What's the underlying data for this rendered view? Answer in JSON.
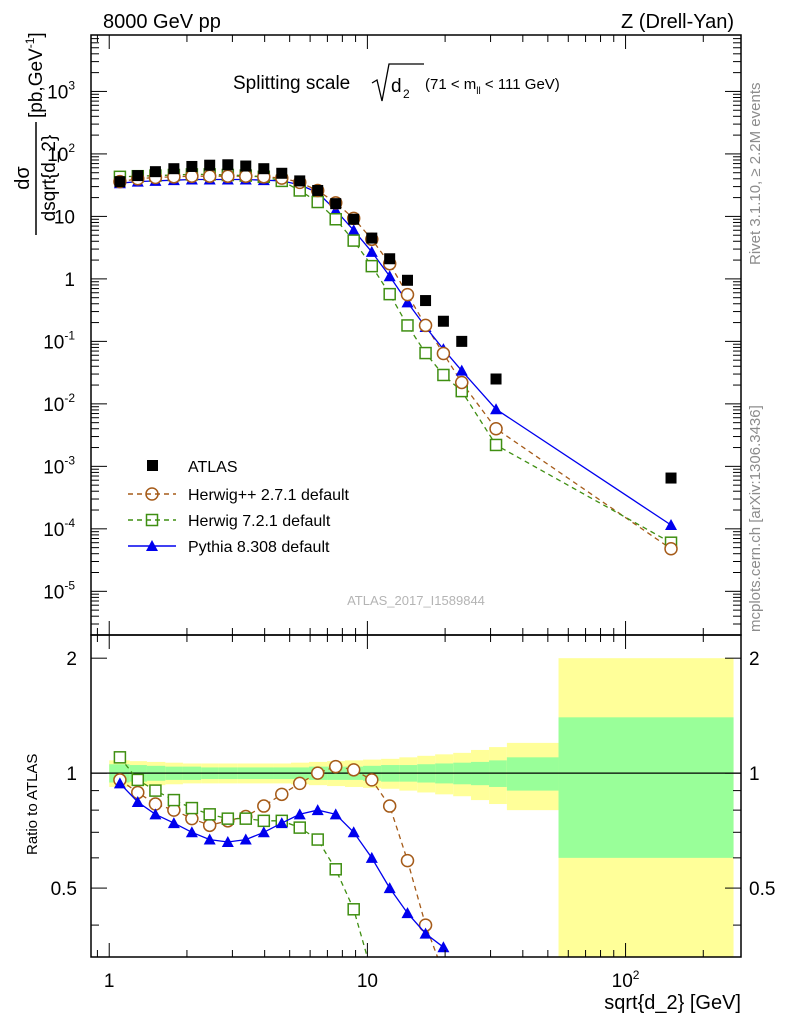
{
  "header": {
    "left": "8000 GeV pp",
    "right": "Z (Drell-Yan)"
  },
  "side_text": {
    "rivet": "Rivet 3.1.10, ≥ 2.2M events",
    "source": "mcplots.cern.ch [arXiv:1306.3436]"
  },
  "analysis_id": "ATLAS_2017_I1589844",
  "chart_data": [
    {
      "type": "scatter",
      "panel": "main",
      "title": "Splitting scale √d₂ (71 < m_ll < 111 GeV)",
      "title_text": "Splitting scale",
      "title_sym": "d",
      "title_sub": "2",
      "title_cut": "(71 < m",
      "title_cut_sub": "ll",
      "title_cut_end": " < 111 GeV)",
      "ylabel": "dσ/dsqrt{d_2} [pb,GeV⁻¹]",
      "ylabel_num": "dσ",
      "ylabel_den": "dsqrt{d_2}",
      "ylabel_unit": "[pb,GeV",
      "ylabel_unit_sup": "-1",
      "ylabel_unit_end": "]",
      "xlabel": "sqrt{d_2} [GeV]",
      "log_x": true,
      "log_y": true,
      "xlim": [
        0.85,
        280
      ],
      "ylim": [
        2e-06,
        8000
      ],
      "x_ticks": [
        {
          "value": 1,
          "label": "1"
        },
        {
          "value": 10,
          "label": "10"
        },
        {
          "value": 100,
          "label": "10",
          "sup": "2"
        }
      ],
      "y_ticks": [
        {
          "value": 1e-05,
          "base": "10",
          "sup": "-5"
        },
        {
          "value": 0.0001,
          "base": "10",
          "sup": "-4"
        },
        {
          "value": 0.001,
          "base": "10",
          "sup": "-3"
        },
        {
          "value": 0.01,
          "base": "10",
          "sup": "-2"
        },
        {
          "value": 0.1,
          "base": "10",
          "sup": "-1"
        },
        {
          "value": 1,
          "base": "1",
          "sup": ""
        },
        {
          "value": 10,
          "base": "10",
          "sup": ""
        },
        {
          "value": 100,
          "base": "10",
          "sup": "2"
        },
        {
          "value": 1000,
          "base": "10",
          "sup": "3"
        }
      ],
      "legend_placement": "lower-left",
      "series": [
        {
          "name": "ATLAS",
          "color": "#000000",
          "marker": "square-filled",
          "points": [
            [
              1.1,
              36
            ],
            [
              1.29,
              45
            ],
            [
              1.51,
              52
            ],
            [
              1.78,
              58
            ],
            [
              2.09,
              63
            ],
            [
              2.45,
              66
            ],
            [
              2.88,
              67
            ],
            [
              3.38,
              64
            ],
            [
              3.97,
              58
            ],
            [
              4.66,
              49
            ],
            [
              5.47,
              37
            ],
            [
              6.42,
              26
            ],
            [
              7.54,
              16
            ],
            [
              8.85,
              9.0
            ],
            [
              10.4,
              4.5
            ],
            [
              12.2,
              2.1
            ],
            [
              14.3,
              0.95
            ],
            [
              16.8,
              0.45
            ],
            [
              19.7,
              0.21
            ],
            [
              23.2,
              0.1
            ],
            [
              31.5,
              0.025
            ],
            [
              150,
              0.00065
            ]
          ]
        },
        {
          "name": "Herwig++ 2.7.1 default",
          "color": "#a55b19",
          "marker": "circle-open",
          "line": "dashed",
          "points": [
            [
              1.1,
              36
            ],
            [
              1.29,
              40
            ],
            [
              1.51,
              42
            ],
            [
              1.78,
              43
            ],
            [
              2.09,
              44
            ],
            [
              2.45,
              44
            ],
            [
              2.88,
              44
            ],
            [
              3.38,
              44
            ],
            [
              3.97,
              43
            ],
            [
              4.66,
              41
            ],
            [
              5.47,
              35
            ],
            [
              6.42,
              26
            ],
            [
              7.54,
              16.5
            ],
            [
              8.85,
              9.3
            ],
            [
              10.4,
              4.3
            ],
            [
              12.2,
              1.75
            ],
            [
              14.3,
              0.56
            ],
            [
              16.8,
              0.18
            ],
            [
              19.7,
              0.064
            ],
            [
              23.2,
              0.022
            ],
            [
              31.5,
              0.004
            ],
            [
              150,
              4.8e-05
            ]
          ]
        },
        {
          "name": "Herwig 7.2.1 default",
          "color": "#3f8f12",
          "marker": "square-open",
          "line": "dashed",
          "points": [
            [
              1.1,
              43
            ],
            [
              1.29,
              44
            ],
            [
              1.51,
              45
            ],
            [
              1.78,
              46
            ],
            [
              2.09,
              47
            ],
            [
              2.45,
              47
            ],
            [
              2.88,
              46
            ],
            [
              3.38,
              45
            ],
            [
              3.97,
              43
            ],
            [
              4.66,
              37
            ],
            [
              5.47,
              26
            ],
            [
              6.42,
              17
            ],
            [
              7.54,
              9.0
            ],
            [
              8.85,
              4.1
            ],
            [
              10.4,
              1.6
            ],
            [
              12.2,
              0.57
            ],
            [
              14.3,
              0.18
            ],
            [
              16.8,
              0.065
            ],
            [
              19.7,
              0.029
            ],
            [
              23.2,
              0.016
            ],
            [
              31.5,
              0.0022
            ],
            [
              150,
              6e-05
            ]
          ]
        },
        {
          "name": "Pythia 8.308 default",
          "color": "#0000ee",
          "marker": "triangle-filled",
          "line": "solid",
          "points": [
            [
              1.1,
              34
            ],
            [
              1.29,
              36
            ],
            [
              1.51,
              37
            ],
            [
              1.78,
              38
            ],
            [
              2.09,
              39
            ],
            [
              2.45,
              39
            ],
            [
              2.88,
              39
            ],
            [
              3.38,
              39
            ],
            [
              3.97,
              38
            ],
            [
              4.66,
              37
            ],
            [
              5.47,
              32
            ],
            [
              6.42,
              24
            ],
            [
              7.54,
              12.5
            ],
            [
              8.85,
              6.0
            ],
            [
              10.4,
              2.7
            ],
            [
              12.2,
              1.1
            ],
            [
              14.3,
              0.42
            ],
            [
              16.8,
              0.17
            ],
            [
              19.7,
              0.075
            ],
            [
              23.2,
              0.034
            ],
            [
              31.5,
              0.0082
            ],
            [
              150,
              0.000115
            ]
          ]
        }
      ]
    },
    {
      "type": "line",
      "panel": "ratio",
      "ylabel": "Ratio to ATLAS",
      "xlabel": "sqrt{d_2} [GeV]",
      "log_x": true,
      "xlim": [
        0.85,
        280
      ],
      "ylim": [
        0.33,
        2.3
      ],
      "y_ticks": [
        0.5,
        1,
        2
      ],
      "reference_line": 1,
      "bands": {
        "edges": [
          1.0,
          1.2,
          1.4,
          1.65,
          1.93,
          2.27,
          2.66,
          3.13,
          3.67,
          4.31,
          5.06,
          5.94,
          6.98,
          8.19,
          9.62,
          11.3,
          13.3,
          15.6,
          18.3,
          21.5,
          25.2,
          29.6,
          34.7,
          55.0,
          262
        ],
        "inner_halfwidth": [
          0.055,
          0.05,
          0.045,
          0.04,
          0.04,
          0.035,
          0.035,
          0.035,
          0.035,
          0.035,
          0.035,
          0.04,
          0.04,
          0.04,
          0.045,
          0.05,
          0.05,
          0.055,
          0.06,
          0.065,
          0.07,
          0.08,
          0.1,
          0.4,
          null
        ],
        "outer_halfwidth": [
          0.08,
          0.075,
          0.07,
          0.065,
          0.06,
          0.06,
          0.06,
          0.06,
          0.06,
          0.06,
          0.065,
          0.07,
          0.075,
          0.08,
          0.085,
          0.09,
          0.1,
          0.11,
          0.12,
          0.13,
          0.15,
          0.17,
          0.2,
          1.0,
          null
        ],
        "inner_color": "#99ff99",
        "outer_color": "#ffff99"
      },
      "series": [
        {
          "name": "Herwig++ 2.7.1 default",
          "color": "#a55b19",
          "points": [
            [
              1.1,
              0.96
            ],
            [
              1.29,
              0.89
            ],
            [
              1.51,
              0.83
            ],
            [
              1.78,
              0.8
            ],
            [
              2.09,
              0.76
            ],
            [
              2.45,
              0.73
            ],
            [
              2.88,
              0.75
            ],
            [
              3.38,
              0.77
            ],
            [
              3.97,
              0.82
            ],
            [
              4.66,
              0.88
            ],
            [
              5.47,
              0.94
            ],
            [
              6.42,
              1.0
            ],
            [
              7.54,
              1.04
            ],
            [
              8.85,
              1.02
            ],
            [
              10.4,
              0.96
            ],
            [
              12.2,
              0.82
            ],
            [
              14.3,
              0.59
            ],
            [
              16.8,
              0.4
            ],
            [
              19.7,
              0.3
            ]
          ]
        },
        {
          "name": "Herwig 7.2.1 default",
          "color": "#3f8f12",
          "points": [
            [
              1.1,
              1.1
            ],
            [
              1.29,
              0.96
            ],
            [
              1.51,
              0.9
            ],
            [
              1.78,
              0.85
            ],
            [
              2.09,
              0.81
            ],
            [
              2.45,
              0.78
            ],
            [
              2.88,
              0.76
            ],
            [
              3.38,
              0.76
            ],
            [
              3.97,
              0.75
            ],
            [
              4.66,
              0.75
            ],
            [
              5.47,
              0.72
            ],
            [
              6.42,
              0.67
            ],
            [
              7.54,
              0.56
            ],
            [
              8.85,
              0.44
            ],
            [
              10.4,
              0.3
            ]
          ]
        },
        {
          "name": "Pythia 8.308 default",
          "color": "#0000ee",
          "points": [
            [
              1.1,
              0.94
            ],
            [
              1.29,
              0.84
            ],
            [
              1.51,
              0.78
            ],
            [
              1.78,
              0.74
            ],
            [
              2.09,
              0.7
            ],
            [
              2.45,
              0.67
            ],
            [
              2.88,
              0.66
            ],
            [
              3.38,
              0.67
            ],
            [
              3.97,
              0.7
            ],
            [
              4.66,
              0.74
            ],
            [
              5.47,
              0.78
            ],
            [
              6.42,
              0.8
            ],
            [
              7.54,
              0.78
            ],
            [
              8.85,
              0.7
            ],
            [
              10.4,
              0.6
            ],
            [
              12.2,
              0.5
            ],
            [
              14.3,
              0.43
            ],
            [
              16.8,
              0.38
            ],
            [
              19.7,
              0.35
            ]
          ]
        }
      ]
    }
  ]
}
